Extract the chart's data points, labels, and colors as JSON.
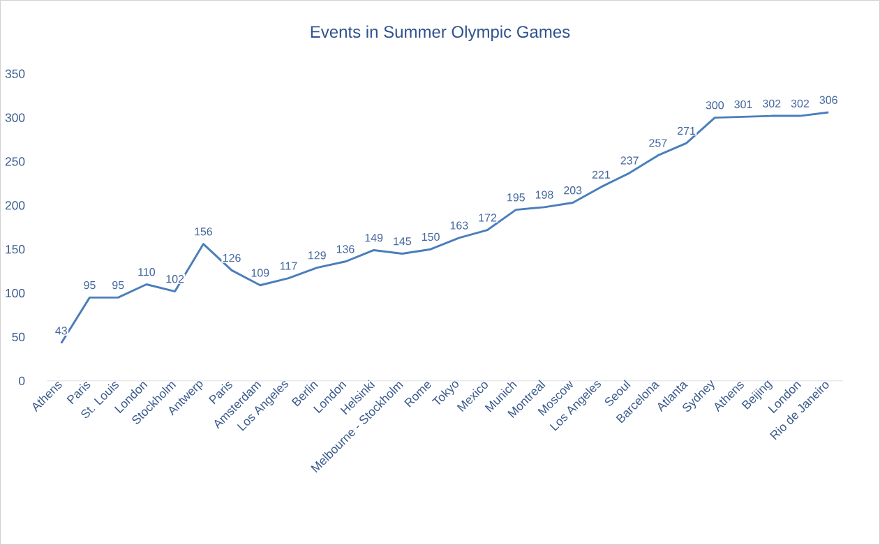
{
  "chart_data": {
    "type": "line",
    "title": "Events in Summer Olympic Games",
    "categories": [
      "Athens",
      "Paris",
      "St. Louis",
      "London",
      "Stockholm",
      "Antwerp",
      "Paris",
      "Amsterdam",
      "Los Angeles",
      "Berlin",
      "London",
      "Helsinki",
      "Melbourne - Stockholm",
      "Rome",
      "Tokyo",
      "Mexico",
      "Munich",
      "Montreal",
      "Moscow",
      "Los Angeles",
      "Seoul",
      "Barcelona",
      "Atlanta",
      "Sydney",
      "Athens",
      "Beijing",
      "London",
      "Rio de Janeiro"
    ],
    "values": [
      43,
      95,
      95,
      110,
      102,
      156,
      126,
      109,
      117,
      129,
      136,
      149,
      145,
      150,
      163,
      172,
      195,
      198,
      203,
      221,
      237,
      257,
      271,
      300,
      301,
      302,
      302,
      306
    ],
    "color": "#4a7ebb",
    "ylim": [
      0,
      350
    ],
    "yticks": [
      0,
      50,
      100,
      150,
      200,
      250,
      300,
      350
    ],
    "grid": false,
    "marker": "none",
    "line_style": "solid",
    "data_labels": true
  }
}
